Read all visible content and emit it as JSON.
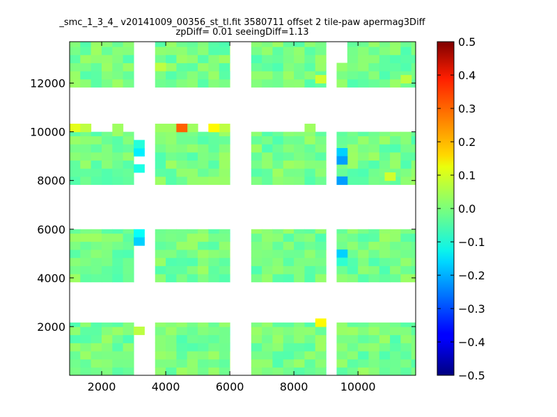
{
  "chart_data": {
    "type": "heatmap",
    "title": "_smc_1_3_4_ v20141009_00356_st_tl.fit 3580711 offset 2 tile-paw apermag3Diff",
    "subtitle": "zpDiff= 0.01 seeingDiff=1.13",
    "xlabel": "",
    "ylabel": "",
    "xlim": [
      1000,
      11800
    ],
    "ylim": [
      0,
      13700
    ],
    "xticks": [
      2000,
      4000,
      6000,
      8000,
      10000
    ],
    "yticks": [
      2000,
      4000,
      6000,
      8000,
      10000,
      12000
    ],
    "colormap": "jet",
    "clim": [
      -0.5,
      0.5
    ],
    "colorbar_ticks": [
      "0.5",
      "0.4",
      "0.3",
      "0.2",
      "0.1",
      "0.0",
      "−0.1",
      "−0.2",
      "−0.3",
      "−0.4",
      "−0.5"
    ],
    "cell_size": [
      333,
      333
    ],
    "base_value": 0.0,
    "chips_x": [
      [
        1000,
        3000
      ],
      [
        3667,
        6000
      ],
      [
        6667,
        9000
      ],
      [
        9333,
        11800
      ]
    ],
    "chips_y": [
      [
        0,
        2167
      ],
      [
        3833,
        6000
      ],
      [
        7833,
        10000
      ],
      [
        11833,
        13700
      ]
    ],
    "missing_columns": [
      {
        "x_range": [
          3000,
          3333
        ],
        "y_range": [
          3833,
          6000
        ]
      },
      {
        "x_range": [
          3333,
          3667
        ],
        "y_range": [
          0,
          13700
        ]
      },
      {
        "x_range": [
          9000,
          9333
        ],
        "y_range": [
          0,
          13700
        ]
      },
      {
        "x_range": [
          3000,
          3333
        ],
        "y_range": [
          12833,
          13700
        ]
      },
      {
        "x_range": [
          9333,
          9667
        ],
        "y_range": [
          12833,
          13700
        ]
      }
    ],
    "extra_cells": [
      {
        "x": 1000,
        "y": 10000,
        "value": 0.1
      },
      {
        "x": 1333,
        "y": 10000,
        "value": 0.06
      },
      {
        "x": 2333,
        "y": 10000,
        "value": 0.03
      },
      {
        "x": 3667,
        "y": 12500,
        "value": 0.06
      },
      {
        "x": 3667,
        "y": 10000,
        "value": 0.03
      },
      {
        "x": 4000,
        "y": 10000,
        "value": 0.03
      },
      {
        "x": 4333,
        "y": 10000,
        "value": 0.28
      },
      {
        "x": 4667,
        "y": 10000,
        "value": 0.03
      },
      {
        "x": 5333,
        "y": 10000,
        "value": 0.13
      },
      {
        "x": 5667,
        "y": 10000,
        "value": 0.06
      },
      {
        "x": 8333,
        "y": 10000,
        "value": 0.03
      }
    ],
    "highlight_cells": [
      {
        "x": 3000,
        "y": 9000,
        "value": -0.14
      },
      {
        "x": 3000,
        "y": 9333,
        "value": -0.09
      },
      {
        "x": 3000,
        "y": 8333,
        "value": -0.1
      },
      {
        "x": 3000,
        "y": 5667,
        "value": -0.12
      },
      {
        "x": 3000,
        "y": 5333,
        "value": -0.17
      },
      {
        "x": 3000,
        "y": 1667,
        "value": 0.06
      },
      {
        "x": 4333,
        "y": 10000,
        "value": 0.28
      },
      {
        "x": 5333,
        "y": 10000,
        "value": 0.13
      },
      {
        "x": 8667,
        "y": 12000,
        "value": 0.08
      },
      {
        "x": 8667,
        "y": 2000,
        "value": 0.13
      },
      {
        "x": 9333,
        "y": 9000,
        "value": -0.17
      },
      {
        "x": 9333,
        "y": 8667,
        "value": -0.22
      },
      {
        "x": 9333,
        "y": 7833,
        "value": -0.22
      },
      {
        "x": 9333,
        "y": 4833,
        "value": -0.17
      },
      {
        "x": 9333,
        "y": 4500,
        "value": -0.08
      },
      {
        "x": 10833,
        "y": 8000,
        "value": 0.08
      },
      {
        "x": 11333,
        "y": 12000,
        "value": 0.06
      }
    ]
  }
}
